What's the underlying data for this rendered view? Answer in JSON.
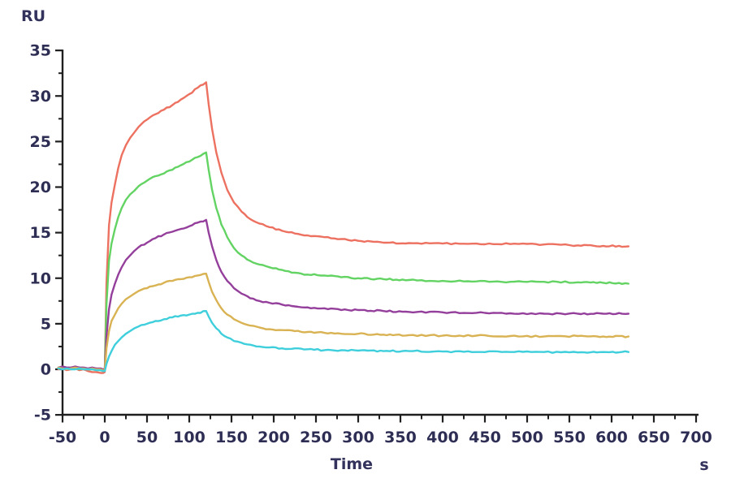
{
  "page": {
    "background": "#ffffff"
  },
  "colors": {
    "axis_line": "#1f1f1f",
    "tick_label": "#2e2e55",
    "axis_title": "#32325c"
  },
  "chart_data": {
    "type": "line",
    "title": "",
    "ylabel": "RU",
    "xlabel": "Time",
    "x_unit_label": "s",
    "legend": false,
    "grid": false,
    "x_axis": {
      "min": -50,
      "max": 700,
      "major_step": 50,
      "minor_step": 25,
      "tick_labels": [
        -50,
        0,
        50,
        100,
        150,
        200,
        250,
        300,
        350,
        400,
        450,
        500,
        550,
        600,
        650,
        700
      ]
    },
    "y_axis": {
      "min": -5,
      "max": 35,
      "major_step": 5,
      "minor_step": 2.5,
      "tick_labels": [
        35,
        30,
        25,
        20,
        15,
        10,
        5,
        0,
        -5
      ]
    },
    "injection_start_s": 0,
    "injection_end_s": 120,
    "x": [
      -55,
      -50,
      -45,
      -40,
      -35,
      -30,
      -25,
      -20,
      -15,
      -10,
      -5,
      -2,
      0,
      2,
      5,
      8,
      12,
      16,
      20,
      25,
      30,
      35,
      40,
      50,
      60,
      70,
      80,
      90,
      100,
      110,
      120,
      123,
      127,
      132,
      138,
      145,
      153,
      162,
      172,
      183,
      195,
      210,
      225,
      240,
      260,
      280,
      300,
      330,
      360,
      400,
      440,
      480,
      520,
      560,
      590,
      620
    ],
    "series": [
      {
        "name": "red-curve",
        "color": "#ed7160",
        "peak_ru": 31.5,
        "plateau_ru": 13.5,
        "values": [
          0.0,
          0.1,
          -0.1,
          0.0,
          0.1,
          -0.1,
          0.0,
          -0.2,
          -0.3,
          -0.3,
          -0.4,
          -0.4,
          -0.3,
          9.5,
          15.8,
          18.3,
          20.3,
          22.1,
          23.5,
          24.6,
          25.4,
          26.0,
          26.6,
          27.4,
          28.0,
          28.5,
          29.0,
          29.6,
          30.2,
          30.9,
          31.5,
          29.1,
          26.4,
          23.8,
          21.6,
          19.7,
          18.3,
          17.3,
          16.5,
          16.0,
          15.6,
          15.2,
          14.9,
          14.7,
          14.5,
          14.3,
          14.1,
          13.9,
          13.85,
          13.8,
          13.8,
          13.75,
          13.7,
          13.6,
          13.55,
          13.5
        ]
      },
      {
        "name": "green-curve",
        "color": "#63d363",
        "peak_ru": 23.8,
        "plateau_ru": 9.5,
        "values": [
          0.1,
          0.2,
          0.1,
          0.0,
          0.1,
          0.0,
          0.1,
          0.0,
          0.0,
          -0.1,
          -0.1,
          -0.1,
          -0.1,
          7.1,
          11.9,
          13.8,
          15.4,
          16.7,
          17.7,
          18.6,
          19.2,
          19.6,
          20.1,
          20.7,
          21.2,
          21.5,
          21.9,
          22.4,
          22.8,
          23.3,
          23.8,
          21.9,
          19.7,
          17.7,
          15.9,
          14.5,
          13.3,
          12.5,
          11.9,
          11.5,
          11.2,
          10.9,
          10.6,
          10.4,
          10.3,
          10.1,
          10.0,
          9.9,
          9.8,
          9.7,
          9.65,
          9.6,
          9.6,
          9.55,
          9.5,
          9.4
        ]
      },
      {
        "name": "purple-curve",
        "color": "#943f9b",
        "peak_ru": 16.4,
        "plateau_ru": 6.1,
        "values": [
          0.2,
          0.3,
          0.2,
          0.2,
          0.3,
          0.2,
          0.2,
          0.1,
          0.2,
          0.1,
          0.1,
          0.0,
          0.0,
          3.6,
          6.6,
          8.2,
          9.4,
          10.4,
          11.2,
          12.0,
          12.5,
          13.0,
          13.4,
          13.9,
          14.4,
          14.8,
          15.1,
          15.4,
          15.7,
          16.1,
          16.4,
          15.0,
          13.5,
          12.0,
          10.7,
          9.7,
          8.9,
          8.3,
          7.8,
          7.5,
          7.3,
          7.1,
          6.9,
          6.8,
          6.7,
          6.5,
          6.5,
          6.4,
          6.3,
          6.25,
          6.2,
          6.15,
          6.1,
          6.1,
          6.1,
          6.1
        ]
      },
      {
        "name": "gold-curve",
        "color": "#d9b353",
        "peak_ru": 10.5,
        "plateau_ru": 3.6,
        "values": [
          0.2,
          0.1,
          0.0,
          0.1,
          0.2,
          0.1,
          0.1,
          0.0,
          0.1,
          0.0,
          0.0,
          -0.1,
          -0.1,
          2.3,
          4.2,
          5.3,
          6.0,
          6.7,
          7.2,
          7.7,
          8.0,
          8.3,
          8.6,
          8.9,
          9.2,
          9.5,
          9.7,
          9.9,
          10.1,
          10.3,
          10.5,
          9.6,
          8.5,
          7.6,
          6.7,
          6.0,
          5.5,
          5.1,
          4.8,
          4.6,
          4.4,
          4.3,
          4.2,
          4.1,
          4.0,
          3.9,
          3.9,
          3.8,
          3.75,
          3.7,
          3.7,
          3.65,
          3.6,
          3.65,
          3.6,
          3.6
        ]
      },
      {
        "name": "cyan-curve",
        "color": "#3fcfdc",
        "peak_ru": 6.4,
        "plateau_ru": 1.9,
        "values": [
          0.1,
          0.0,
          0.1,
          0.0,
          0.0,
          0.1,
          0.0,
          0.0,
          0.0,
          -0.1,
          -0.1,
          -0.2,
          -0.2,
          0.6,
          1.4,
          2.0,
          2.7,
          3.1,
          3.5,
          3.9,
          4.2,
          4.5,
          4.7,
          5.0,
          5.3,
          5.5,
          5.7,
          5.9,
          6.0,
          6.2,
          6.4,
          5.8,
          5.1,
          4.5,
          3.9,
          3.5,
          3.1,
          2.9,
          2.7,
          2.5,
          2.4,
          2.3,
          2.3,
          2.2,
          2.1,
          2.1,
          2.05,
          2.0,
          2.0,
          1.95,
          1.9,
          1.9,
          1.9,
          1.85,
          1.9,
          1.9
        ]
      }
    ]
  }
}
